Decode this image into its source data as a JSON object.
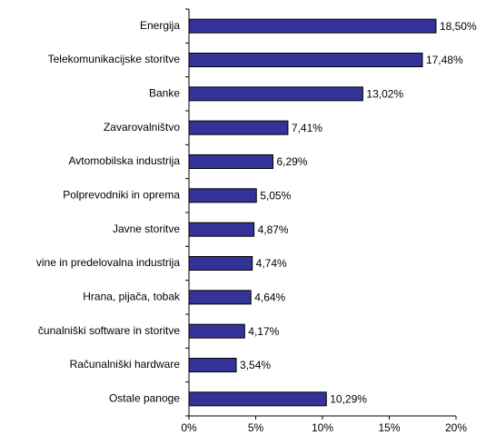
{
  "chart_data": {
    "type": "bar",
    "orientation": "horizontal",
    "categories": [
      "Energija",
      "Telekomunikacijske storitve",
      "Banke",
      "Zavarovalništvo",
      "Avtomobilska industrija",
      "Polprevodniki in oprema",
      "Javne storitve",
      "vine in predelovalna industrija",
      "Hrana, pijača, tobak",
      "čunalniški software in storitve",
      "Računalniški hardware",
      "Ostale panoge"
    ],
    "values": [
      18.5,
      17.48,
      13.02,
      7.41,
      6.29,
      5.05,
      4.87,
      4.74,
      4.64,
      4.17,
      3.54,
      10.29
    ],
    "value_labels": [
      "18,50%",
      "17,48%",
      "13,02%",
      "7,41%",
      "6,29%",
      "5,05%",
      "4,87%",
      "4,74%",
      "4,64%",
      "4,17%",
      "3,54%",
      "10,29%"
    ],
    "color": "#333399",
    "xlim": [
      0,
      20
    ],
    "xticks": [
      {
        "value": 0,
        "label": "0%"
      },
      {
        "value": 5,
        "label": "5%"
      },
      {
        "value": 10,
        "label": "10%"
      },
      {
        "value": 15,
        "label": "15%"
      },
      {
        "value": 20,
        "label": "20%"
      }
    ],
    "grid": false
  }
}
